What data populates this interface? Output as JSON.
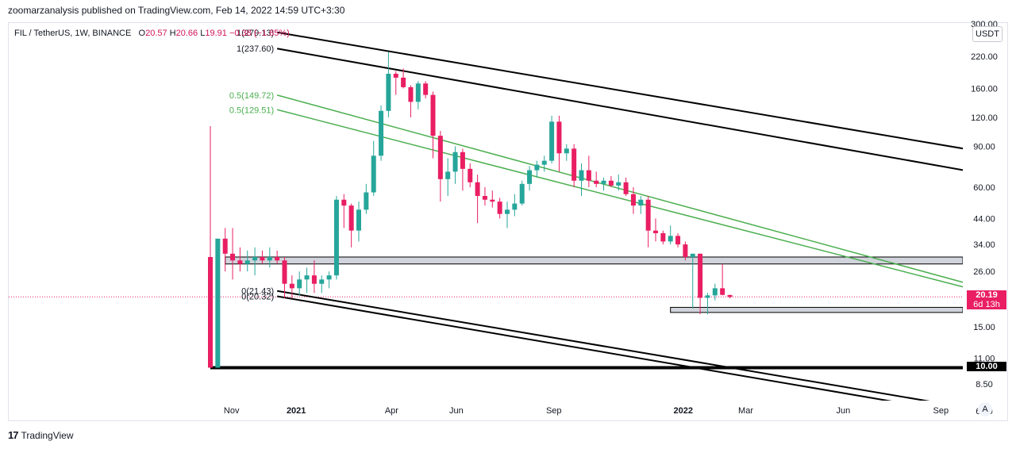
{
  "header": {
    "publisher_line": "zoomarzanalysis published on TradingView.com, Feb 14, 2022 14:59 UTC+3:30"
  },
  "legend": {
    "symbol": "FIL / TetherUS, 1W, BINANCE",
    "open_label": "O",
    "open": "20.57",
    "high_label": "H",
    "high": "20.66",
    "low_label": "L",
    "low": "19.91",
    "change": "−0.38 (−1.85%)"
  },
  "currency_button": "USDT",
  "auto_button": "A",
  "footer": {
    "logo": "17",
    "brand": "TradingView"
  },
  "colors": {
    "up": "#26a69a",
    "down": "#ef5350",
    "down_strong": "#e91e63",
    "fib_green": "#4caf50",
    "line_black": "#000000",
    "zone_fill": "#d1d4dc",
    "price_tag": "#e91e63"
  },
  "chart_data": {
    "type": "candlestick",
    "scale": "log",
    "ylim": [
      5.5,
      300
    ],
    "y_ticks": [
      "220.00",
      "160.00",
      "120.00",
      "90.00",
      "60.00",
      "44.00",
      "34.00",
      "26.00",
      "15.00",
      "11.00",
      "8.50",
      "6.50"
    ],
    "x_ticks": [
      {
        "label": "Nov",
        "date": "2020-11-01"
      },
      {
        "label": "2021",
        "date": "2021-01-01",
        "bold": true
      },
      {
        "label": "Apr",
        "date": "2021-04-01"
      },
      {
        "label": "Jun",
        "date": "2021-06-01"
      },
      {
        "label": "Sep",
        "date": "2021-09-01"
      },
      {
        "label": "2022",
        "date": "2022-01-01",
        "bold": true
      },
      {
        "label": "Mar",
        "date": "2022-03-01"
      },
      {
        "label": "Jun",
        "date": "2022-06-01"
      },
      {
        "label": "Sep",
        "date": "2022-09-01"
      }
    ],
    "candles": [
      {
        "date": "2020-10-12",
        "o": 30,
        "h": 110,
        "l": 10,
        "c": 10
      },
      {
        "date": "2020-10-19",
        "o": 10,
        "h": 36,
        "l": 10,
        "c": 36
      },
      {
        "date": "2020-10-26",
        "o": 36,
        "h": 40,
        "l": 26,
        "c": 31
      },
      {
        "date": "2020-11-02",
        "o": 31,
        "h": 40,
        "l": 24,
        "c": 29
      },
      {
        "date": "2020-11-09",
        "o": 29,
        "h": 33,
        "l": 26,
        "c": 28
      },
      {
        "date": "2020-11-16",
        "o": 28,
        "h": 32,
        "l": 26,
        "c": 29
      },
      {
        "date": "2020-11-23",
        "o": 29,
        "h": 33,
        "l": 25,
        "c": 30
      },
      {
        "date": "2020-11-30",
        "o": 30,
        "h": 32,
        "l": 28,
        "c": 29
      },
      {
        "date": "2020-12-07",
        "o": 29,
        "h": 33,
        "l": 27,
        "c": 30
      },
      {
        "date": "2020-12-14",
        "o": 30,
        "h": 32,
        "l": 28,
        "c": 29
      },
      {
        "date": "2020-12-21",
        "o": 29,
        "h": 30,
        "l": 20,
        "c": 23
      },
      {
        "date": "2020-12-28",
        "o": 23,
        "h": 25,
        "l": 20,
        "c": 22
      },
      {
        "date": "2021-01-04",
        "o": 22,
        "h": 26,
        "l": 20.5,
        "c": 24
      },
      {
        "date": "2021-01-11",
        "o": 24,
        "h": 27,
        "l": 21,
        "c": 25
      },
      {
        "date": "2021-01-18",
        "o": 25,
        "h": 29,
        "l": 21,
        "c": 23
      },
      {
        "date": "2021-01-25",
        "o": 23,
        "h": 25,
        "l": 21,
        "c": 24
      },
      {
        "date": "2021-02-01",
        "o": 24,
        "h": 26,
        "l": 22,
        "c": 25
      },
      {
        "date": "2021-02-08",
        "o": 25,
        "h": 55,
        "l": 24,
        "c": 53
      },
      {
        "date": "2021-02-15",
        "o": 53,
        "h": 56,
        "l": 40,
        "c": 50
      },
      {
        "date": "2021-02-22",
        "o": 50,
        "h": 51,
        "l": 33,
        "c": 39
      },
      {
        "date": "2021-03-01",
        "o": 39,
        "h": 52,
        "l": 35,
        "c": 48
      },
      {
        "date": "2021-03-08",
        "o": 48,
        "h": 62,
        "l": 46,
        "c": 57
      },
      {
        "date": "2021-03-15",
        "o": 57,
        "h": 95,
        "l": 55,
        "c": 82
      },
      {
        "date": "2021-03-22",
        "o": 82,
        "h": 135,
        "l": 78,
        "c": 128
      },
      {
        "date": "2021-03-29",
        "o": 128,
        "h": 230,
        "l": 120,
        "c": 185
      },
      {
        "date": "2021-04-05",
        "o": 185,
        "h": 190,
        "l": 150,
        "c": 178
      },
      {
        "date": "2021-04-12",
        "o": 178,
        "h": 195,
        "l": 160,
        "c": 162
      },
      {
        "date": "2021-04-19",
        "o": 162,
        "h": 165,
        "l": 120,
        "c": 140
      },
      {
        "date": "2021-04-26",
        "o": 140,
        "h": 172,
        "l": 130,
        "c": 168
      },
      {
        "date": "2021-05-03",
        "o": 168,
        "h": 172,
        "l": 145,
        "c": 150
      },
      {
        "date": "2021-05-10",
        "o": 150,
        "h": 155,
        "l": 80,
        "c": 100
      },
      {
        "date": "2021-05-17",
        "o": 100,
        "h": 105,
        "l": 52,
        "c": 65
      },
      {
        "date": "2021-05-24",
        "o": 65,
        "h": 80,
        "l": 55,
        "c": 70
      },
      {
        "date": "2021-05-31",
        "o": 70,
        "h": 90,
        "l": 62,
        "c": 85
      },
      {
        "date": "2021-06-07",
        "o": 85,
        "h": 88,
        "l": 58,
        "c": 72
      },
      {
        "date": "2021-06-14",
        "o": 72,
        "h": 76,
        "l": 60,
        "c": 63
      },
      {
        "date": "2021-06-21",
        "o": 63,
        "h": 68,
        "l": 42,
        "c": 55
      },
      {
        "date": "2021-06-28",
        "o": 55,
        "h": 60,
        "l": 50,
        "c": 53
      },
      {
        "date": "2021-07-05",
        "o": 53,
        "h": 58,
        "l": 49,
        "c": 52
      },
      {
        "date": "2021-07-12",
        "o": 52,
        "h": 54,
        "l": 44,
        "c": 46
      },
      {
        "date": "2021-07-19",
        "o": 46,
        "h": 52,
        "l": 40,
        "c": 48
      },
      {
        "date": "2021-07-26",
        "o": 48,
        "h": 56,
        "l": 45,
        "c": 51
      },
      {
        "date": "2021-08-02",
        "o": 51,
        "h": 64,
        "l": 50,
        "c": 62
      },
      {
        "date": "2021-08-09",
        "o": 62,
        "h": 74,
        "l": 58,
        "c": 71
      },
      {
        "date": "2021-08-16",
        "o": 71,
        "h": 78,
        "l": 66,
        "c": 75
      },
      {
        "date": "2021-08-23",
        "o": 75,
        "h": 82,
        "l": 70,
        "c": 78
      },
      {
        "date": "2021-08-30",
        "o": 78,
        "h": 122,
        "l": 76,
        "c": 115
      },
      {
        "date": "2021-09-06",
        "o": 115,
        "h": 122,
        "l": 70,
        "c": 84
      },
      {
        "date": "2021-09-13",
        "o": 84,
        "h": 92,
        "l": 78,
        "c": 88
      },
      {
        "date": "2021-09-20",
        "o": 88,
        "h": 92,
        "l": 60,
        "c": 64
      },
      {
        "date": "2021-09-27",
        "o": 64,
        "h": 76,
        "l": 55,
        "c": 71
      },
      {
        "date": "2021-10-04",
        "o": 71,
        "h": 82,
        "l": 60,
        "c": 64
      },
      {
        "date": "2021-10-11",
        "o": 64,
        "h": 70,
        "l": 60,
        "c": 62
      },
      {
        "date": "2021-10-18",
        "o": 62,
        "h": 66,
        "l": 58,
        "c": 64
      },
      {
        "date": "2021-10-25",
        "o": 64,
        "h": 67,
        "l": 60,
        "c": 61
      },
      {
        "date": "2021-11-01",
        "o": 61,
        "h": 68,
        "l": 58,
        "c": 63
      },
      {
        "date": "2021-11-08",
        "o": 63,
        "h": 66,
        "l": 55,
        "c": 56
      },
      {
        "date": "2021-11-15",
        "o": 56,
        "h": 60,
        "l": 46,
        "c": 50
      },
      {
        "date": "2021-11-22",
        "o": 50,
        "h": 55,
        "l": 46,
        "c": 53
      },
      {
        "date": "2021-11-29",
        "o": 53,
        "h": 55,
        "l": 33,
        "c": 39
      },
      {
        "date": "2021-12-06",
        "o": 39,
        "h": 44,
        "l": 35,
        "c": 38
      },
      {
        "date": "2021-12-13",
        "o": 38,
        "h": 39,
        "l": 34,
        "c": 35
      },
      {
        "date": "2021-12-20",
        "o": 35,
        "h": 41,
        "l": 34,
        "c": 37
      },
      {
        "date": "2021-12-27",
        "o": 37,
        "h": 38,
        "l": 33,
        "c": 34
      },
      {
        "date": "2022-01-03",
        "o": 34,
        "h": 35,
        "l": 29,
        "c": 30
      },
      {
        "date": "2022-01-10",
        "o": 30,
        "h": 31,
        "l": 18,
        "c": 31
      },
      {
        "date": "2022-01-17",
        "o": 31,
        "h": 31,
        "l": 17,
        "c": 20
      },
      {
        "date": "2022-01-24",
        "o": 20,
        "h": 21,
        "l": 17,
        "c": 20.5
      },
      {
        "date": "2022-01-31",
        "o": 20.5,
        "h": 23,
        "l": 19.5,
        "c": 22
      },
      {
        "date": "2022-02-07",
        "o": 22,
        "h": 28,
        "l": 20.5,
        "c": 20.6
      },
      {
        "date": "2022-02-14",
        "o": 20.57,
        "h": 20.66,
        "l": 19.91,
        "c": 20.19
      }
    ],
    "trendlines": [
      {
        "kind": "black",
        "from": {
          "date": "2020-12-14",
          "price": 279.13
        },
        "to": {
          "date": "2022-11-01",
          "price": 82
        }
      },
      {
        "kind": "black",
        "from": {
          "date": "2020-12-14",
          "price": 237.6
        },
        "to": {
          "date": "2022-11-01",
          "price": 66
        }
      },
      {
        "kind": "black",
        "from": {
          "date": "2020-12-14",
          "price": 21.43
        },
        "to": {
          "date": "2022-11-01",
          "price": 6.3
        }
      },
      {
        "kind": "black",
        "from": {
          "date": "2020-12-14",
          "price": 20.32
        },
        "to": {
          "date": "2022-11-01",
          "price": 5.9
        }
      },
      {
        "kind": "green",
        "from": {
          "date": "2020-12-14",
          "price": 149.72
        },
        "to": {
          "date": "2022-11-01",
          "price": 20.8
        }
      },
      {
        "kind": "green",
        "from": {
          "date": "2020-12-14",
          "price": 129.51
        },
        "to": {
          "date": "2022-11-01",
          "price": 20.0
        }
      }
    ],
    "annotations": [
      {
        "text": "1(279.13)",
        "date": "2020-12-14",
        "price": 279.13,
        "kind": "black"
      },
      {
        "text": "1(237.60)",
        "date": "2020-12-14",
        "price": 237.6,
        "kind": "black"
      },
      {
        "text": "0.5(149.72)",
        "date": "2020-12-14",
        "price": 149.72,
        "kind": "green"
      },
      {
        "text": "0.5(129.51)",
        "date": "2020-12-14",
        "price": 129.51,
        "kind": "green"
      },
      {
        "text": "0(21.43)",
        "date": "2020-12-14",
        "price": 21.43,
        "kind": "black"
      },
      {
        "text": "0(20.32)",
        "date": "2020-12-14",
        "price": 20.32,
        "kind": "black"
      }
    ],
    "zones": [
      {
        "from_date": "2020-10-26",
        "to_date": "2022-11-01",
        "low": 28,
        "high": 30
      },
      {
        "from_date": "2021-12-20",
        "to_date": "2022-11-01",
        "low": 17.3,
        "high": 18.2
      }
    ],
    "support_line": {
      "price": 10.0,
      "from_date": "2020-10-12",
      "to_date": "2022-11-01"
    },
    "current_price": {
      "value": "20.19",
      "countdown": "6d 13h",
      "price": 20.19
    },
    "support_tag": {
      "value": "10.00",
      "price": 10.0
    },
    "y_max_partial_label": "300.00"
  }
}
